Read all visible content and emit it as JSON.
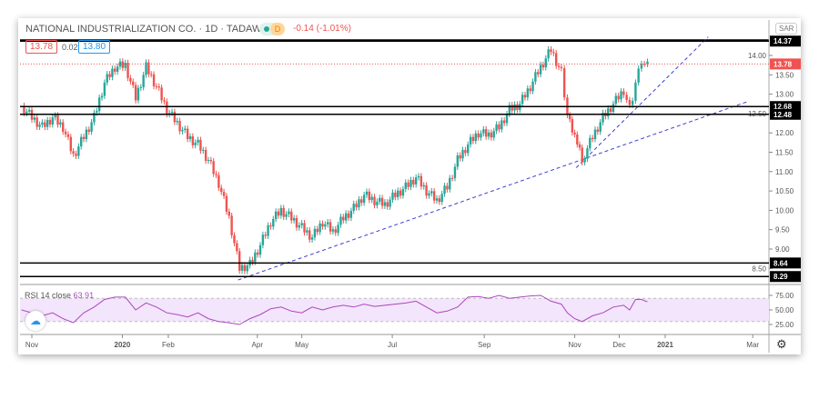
{
  "header": {
    "title": "NATIONAL INDUSTRIALIZATION CO. · 1D · TADAWUL",
    "interval_badge": "D",
    "change": "-0.14 (-1.01%)",
    "bid": "13.78",
    "spread": "0.02",
    "ask": "13.80",
    "currency": "SAR"
  },
  "colors": {
    "up": "#26a69a",
    "down": "#ef5350",
    "rsi": "#ab47bc",
    "rsi_band": "#f3e5fb",
    "trend": "#3f3fd6"
  },
  "icons": {
    "logo": "tradingview-logo-icon",
    "settings": "gear-icon",
    "status": "market-open-dot-icon"
  },
  "chart_data": [
    {
      "type": "candlestick",
      "title": "NATIONAL INDUSTRIALIZATION CO. · 1D · TADAWUL",
      "ylim": [
        8.1,
        14.5
      ],
      "last_price": "13.78",
      "y_ticks": [
        "14.00",
        "13.50",
        "13.00",
        "12.50",
        "12.00",
        "11.50",
        "11.00",
        "10.50",
        "10.00",
        "9.50",
        "9.00",
        "8.50"
      ],
      "x_ticks": [
        {
          "label": "Nov",
          "date": "2019-11-01"
        },
        {
          "label": "2020",
          "date": "2020-01-01"
        },
        {
          "label": "Feb",
          "date": "2020-02-01"
        },
        {
          "label": "Apr",
          "date": "2020-04-01"
        },
        {
          "label": "May",
          "date": "2020-05-01"
        },
        {
          "label": "Jul",
          "date": "2020-07-01"
        },
        {
          "label": "Sep",
          "date": "2020-09-01"
        },
        {
          "label": "Nov",
          "date": "2020-11-01"
        },
        {
          "label": "Dec",
          "date": "2020-12-01"
        },
        {
          "label": "2021",
          "date": "2021-01-01"
        },
        {
          "label": "Mar",
          "date": "2021-03-01"
        }
      ],
      "horizontal_levels": [
        "14.37",
        "12.68",
        "12.48",
        "8.64",
        "8.29"
      ],
      "trendlines": [
        {
          "from": [
            "2020-03-19",
            8.2
          ],
          "to": [
            "2021-02-25",
            12.8
          ]
        },
        {
          "from": [
            "2020-11-02",
            11.1
          ],
          "to": [
            "2021-01-30",
            14.48
          ]
        }
      ],
      "dates": [
        "2019-10-25",
        "2019-11-01",
        "2019-11-08",
        "2019-11-15",
        "2019-11-22",
        "2019-11-29",
        "2019-12-06",
        "2019-12-13",
        "2019-12-20",
        "2019-12-27",
        "2020-01-03",
        "2020-01-10",
        "2020-01-17",
        "2020-01-24",
        "2020-01-31",
        "2020-02-07",
        "2020-02-14",
        "2020-02-21",
        "2020-02-28",
        "2020-03-06",
        "2020-03-13",
        "2020-03-20",
        "2020-03-27",
        "2020-04-03",
        "2020-04-10",
        "2020-04-17",
        "2020-04-24",
        "2020-05-01",
        "2020-05-08",
        "2020-05-15",
        "2020-05-22",
        "2020-05-29",
        "2020-06-05",
        "2020-06-12",
        "2020-06-19",
        "2020-06-26",
        "2020-07-03",
        "2020-07-10",
        "2020-07-17",
        "2020-07-24",
        "2020-07-31",
        "2020-08-07",
        "2020-08-14",
        "2020-08-21",
        "2020-08-28",
        "2020-09-04",
        "2020-09-11",
        "2020-09-18",
        "2020-09-25",
        "2020-10-02",
        "2020-10-09",
        "2020-10-16",
        "2020-10-23",
        "2020-10-27",
        "2020-11-01",
        "2020-11-06",
        "2020-11-13",
        "2020-11-20",
        "2020-11-27",
        "2020-12-04",
        "2020-12-08",
        "2020-12-12",
        "2020-12-16",
        "2020-12-20"
      ],
      "close": [
        12.7,
        12.4,
        12.15,
        12.4,
        12.15,
        11.4,
        11.9,
        12.4,
        13.3,
        13.7,
        13.75,
        12.9,
        13.7,
        13.2,
        12.6,
        12.25,
        11.9,
        11.7,
        11.3,
        10.7,
        9.8,
        8.5,
        8.6,
        9.1,
        9.7,
        10.0,
        9.8,
        9.55,
        9.3,
        9.7,
        9.45,
        9.8,
        10.05,
        10.4,
        10.25,
        10.15,
        10.4,
        10.6,
        10.85,
        10.5,
        10.25,
        10.6,
        11.3,
        11.7,
        12.0,
        11.95,
        12.15,
        12.6,
        12.75,
        13.2,
        13.7,
        14.15,
        13.55,
        12.4,
        11.9,
        11.3,
        11.9,
        12.4,
        12.75,
        13.1,
        12.6,
        13.3,
        13.9,
        13.78
      ],
      "indicator": {
        "label": "RSI 14 close",
        "value": "63.91",
        "levels": [
          70,
          30
        ],
        "y_ticks": [
          "75.00",
          "50.00",
          "25.00"
        ],
        "rsi": [
          50,
          45,
          40,
          45,
          35,
          28,
          45,
          55,
          68,
          72,
          72,
          50,
          62,
          55,
          45,
          42,
          38,
          45,
          35,
          30,
          28,
          25,
          35,
          42,
          52,
          55,
          48,
          45,
          55,
          50,
          55,
          58,
          55,
          60,
          56,
          58,
          60,
          62,
          65,
          55,
          45,
          48,
          55,
          72,
          73,
          70,
          75,
          70,
          72,
          74,
          75,
          65,
          60,
          45,
          35,
          30,
          40,
          45,
          55,
          58,
          50,
          68,
          68,
          63.91
        ]
      }
    }
  ]
}
